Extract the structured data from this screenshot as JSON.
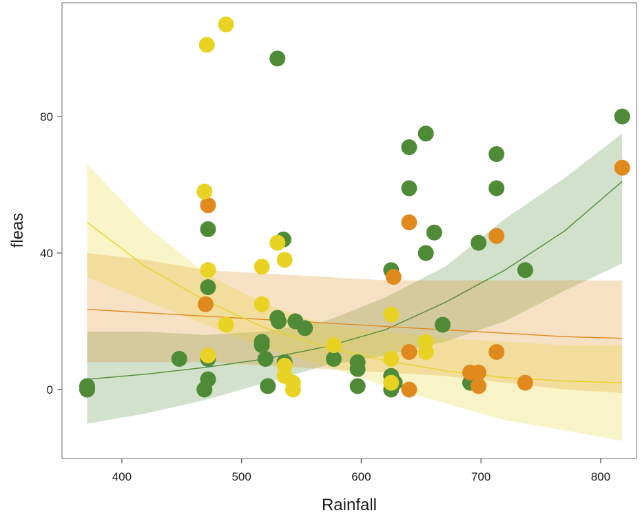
{
  "chart_data": {
    "type": "scatter",
    "title": "",
    "xlabel": "Rainfall",
    "ylabel": "fleas",
    "xlim": [
      350,
      830
    ],
    "ylim": [
      -20,
      113
    ],
    "xticks": [
      400,
      500,
      600,
      700,
      800
    ],
    "yticks": [
      0,
      40,
      80
    ],
    "grid": false,
    "legend": "none",
    "series": [
      {
        "color": "#4f8a36",
        "points": [
          [
            371,
            1
          ],
          [
            371,
            0
          ],
          [
            448,
            9
          ],
          [
            469,
            0
          ],
          [
            472,
            3
          ],
          [
            472,
            9
          ],
          [
            472,
            30
          ],
          [
            472,
            47
          ],
          [
            522,
            1
          ],
          [
            520,
            9
          ],
          [
            517,
            14
          ],
          [
            517,
            13
          ],
          [
            530,
            97
          ],
          [
            530,
            21
          ],
          [
            531,
            20
          ],
          [
            535,
            44
          ],
          [
            536,
            8
          ],
          [
            545,
            20
          ],
          [
            553,
            18
          ],
          [
            577,
            9
          ],
          [
            597,
            8
          ],
          [
            597,
            6
          ],
          [
            597,
            1
          ],
          [
            625,
            4
          ],
          [
            625,
            0
          ],
          [
            628,
            2
          ],
          [
            625,
            35
          ],
          [
            640,
            71
          ],
          [
            640,
            59
          ],
          [
            654,
            75
          ],
          [
            654,
            40
          ],
          [
            661,
            46
          ],
          [
            668,
            19
          ],
          [
            691,
            2
          ],
          [
            698,
            43
          ],
          [
            713,
            69
          ],
          [
            713,
            59
          ],
          [
            737,
            35
          ],
          [
            818,
            80
          ]
        ],
        "fit": [
          [
            371,
            3
          ],
          [
            420,
            4.5
          ],
          [
            470,
            6.5
          ],
          [
            520,
            9
          ],
          [
            570,
            12.5
          ],
          [
            620,
            17.5
          ],
          [
            670,
            25.5
          ],
          [
            720,
            35
          ],
          [
            770,
            46.5
          ],
          [
            818,
            61
          ]
        ],
        "band": [
          [
            371,
            -10,
            17
          ],
          [
            420,
            -7,
            17
          ],
          [
            470,
            -3,
            16
          ],
          [
            520,
            2,
            17
          ],
          [
            570,
            7,
            20
          ],
          [
            620,
            10,
            27
          ],
          [
            670,
            14,
            36
          ],
          [
            720,
            20,
            50
          ],
          [
            770,
            29,
            62
          ],
          [
            818,
            37,
            75
          ]
        ]
      },
      {
        "color": "#e08a1e",
        "points": [
          [
            470,
            25
          ],
          [
            472,
            54
          ],
          [
            627,
            33
          ],
          [
            640,
            11
          ],
          [
            640,
            49
          ],
          [
            640,
            0
          ],
          [
            691,
            5
          ],
          [
            698,
            5
          ],
          [
            698,
            1
          ],
          [
            713,
            45
          ],
          [
            713,
            11
          ],
          [
            737,
            2
          ],
          [
            818,
            65
          ]
        ],
        "fit": [
          [
            371,
            23.5
          ],
          [
            420,
            22.5
          ],
          [
            470,
            21.5
          ],
          [
            520,
            20.5
          ],
          [
            570,
            19.5
          ],
          [
            620,
            18.5
          ],
          [
            670,
            17.5
          ],
          [
            720,
            16.5
          ],
          [
            770,
            15.5
          ],
          [
            818,
            15
          ]
        ],
        "band": [
          [
            371,
            8,
            40
          ],
          [
            420,
            8,
            38
          ],
          [
            470,
            8,
            35
          ],
          [
            520,
            7,
            34
          ],
          [
            570,
            6,
            33
          ],
          [
            620,
            5,
            32
          ],
          [
            670,
            4,
            32
          ],
          [
            720,
            2,
            32
          ],
          [
            770,
            0,
            32
          ],
          [
            818,
            -1,
            32
          ]
        ]
      },
      {
        "color": "#e8d325",
        "points": [
          [
            471,
            101
          ],
          [
            487,
            107
          ],
          [
            469,
            58
          ],
          [
            472,
            35
          ],
          [
            472,
            10
          ],
          [
            487,
            19
          ],
          [
            517,
            36
          ],
          [
            517,
            25
          ],
          [
            530,
            43
          ],
          [
            536,
            38
          ],
          [
            536,
            7
          ],
          [
            536,
            4
          ],
          [
            543,
            2
          ],
          [
            543,
            0
          ],
          [
            577,
            13
          ],
          [
            625,
            22
          ],
          [
            625,
            9
          ],
          [
            625,
            2
          ],
          [
            654,
            14
          ],
          [
            654,
            11
          ]
        ],
        "fit": [
          [
            371,
            49
          ],
          [
            420,
            36
          ],
          [
            470,
            26
          ],
          [
            520,
            18
          ],
          [
            570,
            12.5
          ],
          [
            620,
            8.5
          ],
          [
            670,
            5.5
          ],
          [
            720,
            3.5
          ],
          [
            770,
            2.5
          ],
          [
            818,
            2
          ]
        ],
        "band": [
          [
            371,
            33,
            66
          ],
          [
            420,
            26,
            48
          ],
          [
            470,
            19,
            34
          ],
          [
            520,
            12,
            25
          ],
          [
            570,
            7,
            19
          ],
          [
            620,
            1,
            17
          ],
          [
            670,
            -4,
            15
          ],
          [
            720,
            -9,
            14
          ],
          [
            770,
            -12,
            13
          ],
          [
            818,
            -15,
            13
          ]
        ]
      }
    ]
  }
}
